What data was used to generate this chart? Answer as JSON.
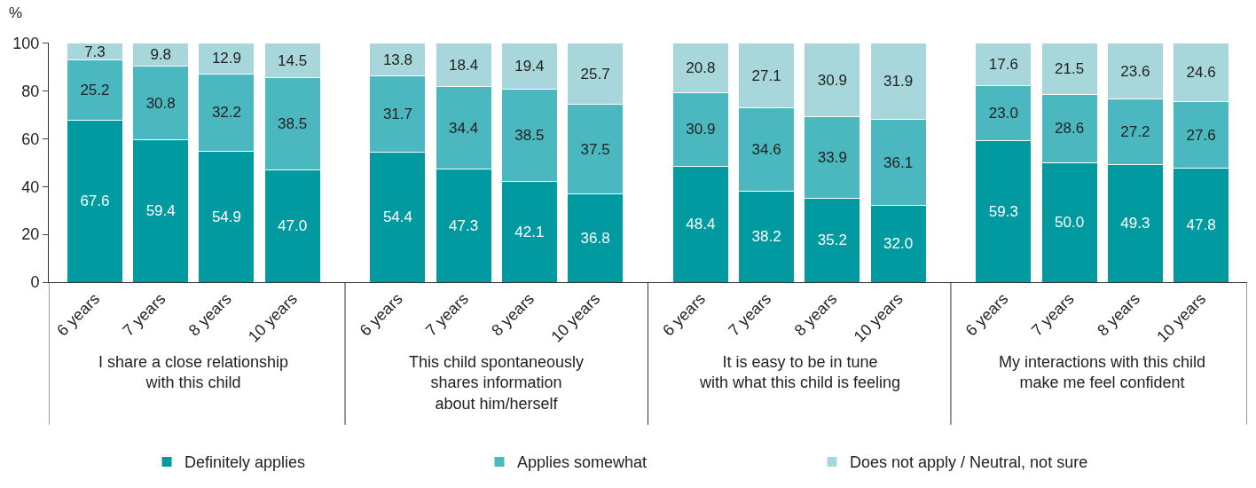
{
  "chart_data": {
    "type": "bar",
    "stacked": true,
    "ylabel": "%",
    "ylim": [
      0,
      100.2
    ],
    "yticks": [
      0,
      20,
      40,
      60,
      80,
      100
    ],
    "legend": "bottom",
    "categories": [
      "6 years",
      "7 years",
      "8 years",
      "10 years",
      "6 years",
      "7 years",
      "8 years",
      "10 years",
      "6 years",
      "7 years",
      "8 years",
      "10 years",
      "6 years",
      "7 years",
      "8 years",
      "10 years"
    ],
    "annotations": [
      "I share a close relationship\nwith this child",
      "This child spontaneously\nshares information\nabout him/herself",
      "It is easy to be in tune\nwith what this child is feeling",
      "My interactions with this child\nmake me feel confident"
    ],
    "series": [
      {
        "name": "Definitely applies",
        "color": "#009aa0",
        "values": [
          67.6,
          59.4,
          54.9,
          47.0,
          54.4,
          47.3,
          42.1,
          36.8,
          48.4,
          38.2,
          35.2,
          32.0,
          59.3,
          50.0,
          49.3,
          47.8
        ],
        "value_labels": [
          "67.6",
          "59.4",
          "54.9",
          "47.0",
          "54.4",
          "47.3",
          "42.1",
          "36.8",
          "48.4",
          "38.2",
          "35.2",
          "32.0",
          "59.3",
          "50.0",
          "49.3",
          "47.8"
        ]
      },
      {
        "name": "Applies somewhat",
        "color": "#4bb8bf",
        "values": [
          25.2,
          30.8,
          32.2,
          38.5,
          31.7,
          34.4,
          38.5,
          37.5,
          30.9,
          34.6,
          33.9,
          36.1,
          23.0,
          28.6,
          27.2,
          27.6
        ],
        "value_labels": [
          "25.2",
          "30.8",
          "32.2",
          "38.5",
          "31.7",
          "34.4",
          "38.5",
          "37.5",
          "30.9",
          "34.6",
          "33.9",
          "36.1",
          "23.0",
          "28.6",
          "27.2",
          "27.6"
        ]
      },
      {
        "name": "Does not apply / Neutral, not sure",
        "color": "#a7d7db",
        "values": [
          7.3,
          9.8,
          12.9,
          14.5,
          13.8,
          18.4,
          19.4,
          25.7,
          20.8,
          27.1,
          30.9,
          31.9,
          17.6,
          21.5,
          23.6,
          24.6
        ],
        "value_labels": [
          "7.3",
          "9.8",
          "12.9",
          "14.5",
          "13.8",
          "18.4",
          "19.4",
          "25.7",
          "20.8",
          "27.1",
          "30.9",
          "31.9",
          "17.6",
          "21.5",
          "23.6",
          "24.6"
        ]
      }
    ]
  }
}
